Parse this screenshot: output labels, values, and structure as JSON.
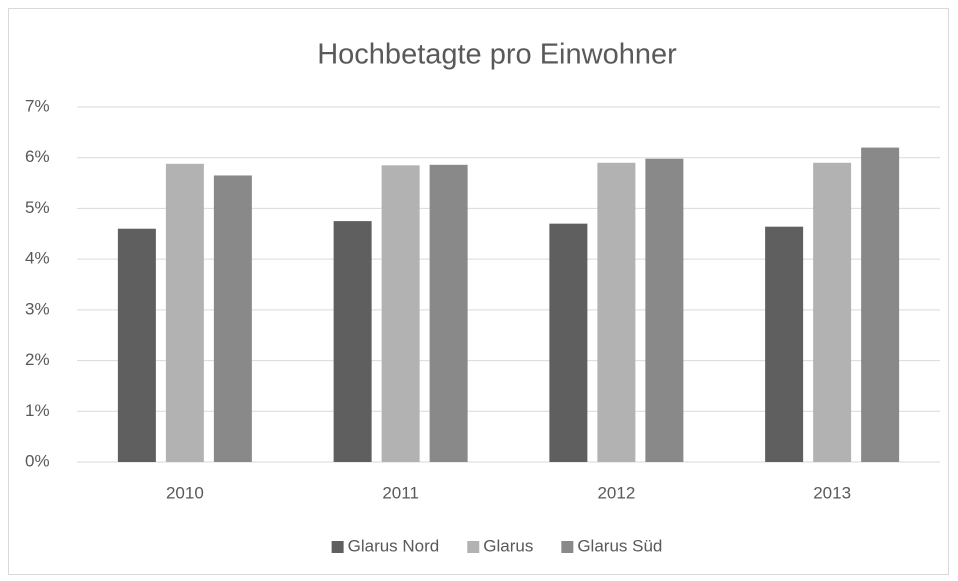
{
  "chart_data": {
    "type": "bar",
    "title": "Hochbetagte pro Einwohner",
    "categories": [
      "2010",
      "2011",
      "2012",
      "2013"
    ],
    "series": [
      {
        "name": "Glarus Nord",
        "color": "#5f5f5f",
        "values": [
          4.6,
          4.75,
          4.7,
          4.64
        ]
      },
      {
        "name": "Glarus",
        "color": "#b2b2b2",
        "values": [
          5.88,
          5.85,
          5.9,
          5.9
        ]
      },
      {
        "name": "Glarus Süd",
        "color": "#898989",
        "values": [
          5.65,
          5.86,
          5.98,
          6.2
        ]
      }
    ],
    "ylim": [
      0,
      7
    ],
    "yticks": [
      {
        "value": 0,
        "label": "0%"
      },
      {
        "value": 1,
        "label": "1%"
      },
      {
        "value": 2,
        "label": "2%"
      },
      {
        "value": 3,
        "label": "3%"
      },
      {
        "value": 4,
        "label": "4%"
      },
      {
        "value": 5,
        "label": "5%"
      },
      {
        "value": 6,
        "label": "6%"
      },
      {
        "value": 7,
        "label": "7%"
      }
    ],
    "grid": true,
    "legend": "bottom"
  }
}
